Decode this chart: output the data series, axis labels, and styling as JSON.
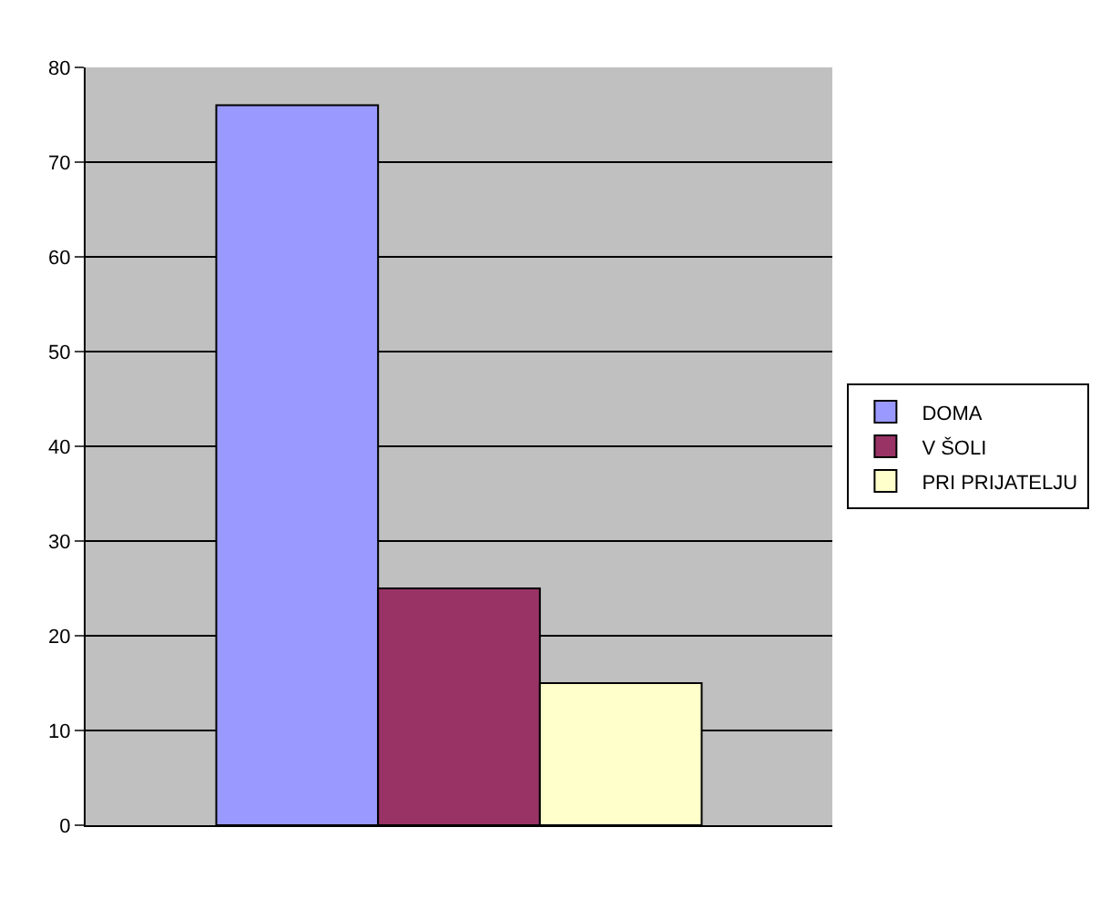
{
  "chart_data": {
    "type": "bar",
    "categories": [
      null
    ],
    "series": [
      {
        "name": "DOMA",
        "color": "#9999ff",
        "values": [
          76
        ]
      },
      {
        "name": "V ŠOLI",
        "color": "#993366",
        "values": [
          25
        ]
      },
      {
        "name": "PRI PRIJATELJU",
        "color": "#ffffcc",
        "values": [
          15
        ]
      }
    ],
    "ylim": [
      0,
      80
    ],
    "yticks": [
      0,
      10,
      20,
      30,
      40,
      50,
      60,
      70,
      80
    ],
    "grid": "y",
    "legend": "right"
  }
}
